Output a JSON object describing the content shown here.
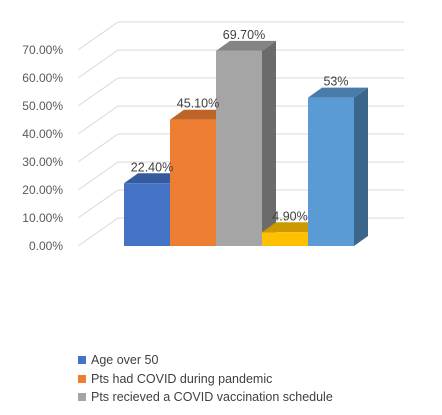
{
  "chart_data": {
    "type": "bar",
    "title": "",
    "xlabel": "",
    "ylabel": "",
    "ylim": [
      0,
      0.7
    ],
    "yticks": [
      "0.00%",
      "10.00%",
      "20.00%",
      "30.00%",
      "40.00%",
      "50.00%",
      "60.00%",
      "70.00%"
    ],
    "grid": true,
    "legend_position": "bottom",
    "style": "3d-columns",
    "series": [
      {
        "name": "Age over 50",
        "value": 0.224,
        "label": "22.40%",
        "color": "#4472C4"
      },
      {
        "name": "Pts had COVID during pandemic",
        "value": 0.451,
        "label": "45.10%",
        "color": "#ED7D31"
      },
      {
        "name": "Pts recieved a COVID vaccination schedule",
        "value": 0.697,
        "label": "69.70%",
        "color": "#A5A5A5"
      },
      {
        "name": "",
        "value": 0.049,
        "label": "4.90%",
        "color": "#FFC000"
      },
      {
        "name": "",
        "value": 0.53,
        "label": "53%",
        "color": "#5B9BD5"
      }
    ]
  }
}
